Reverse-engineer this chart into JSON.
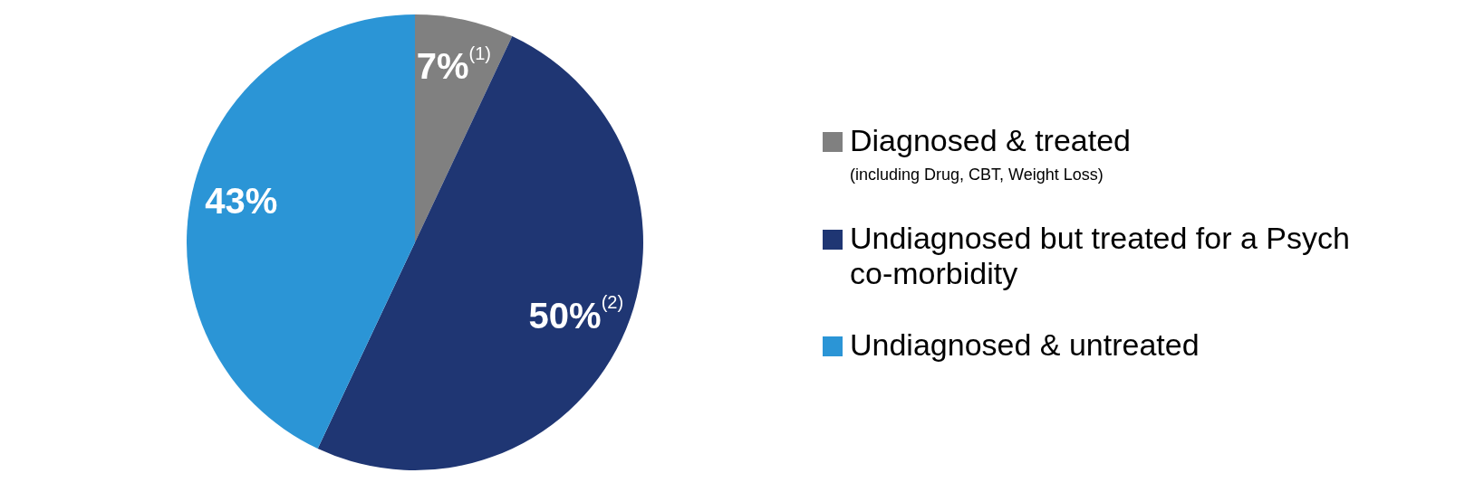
{
  "chart_data": {
    "type": "pie",
    "categories": [
      "Diagnosed & treated",
      "Undiagnosed but treated for a Psych co-morbidity",
      "Undiagnosed & untreated"
    ],
    "values": [
      7,
      50,
      43
    ],
    "colors": [
      "#808080",
      "#1f3673",
      "#2b95d6"
    ],
    "value_labels": [
      "7%$^{(1)}$",
      "50%$^{(2)}$",
      "43%"
    ],
    "annotations": [
      "(including Drug, CBT, Weight Loss)"
    ],
    "legend": "right"
  }
}
